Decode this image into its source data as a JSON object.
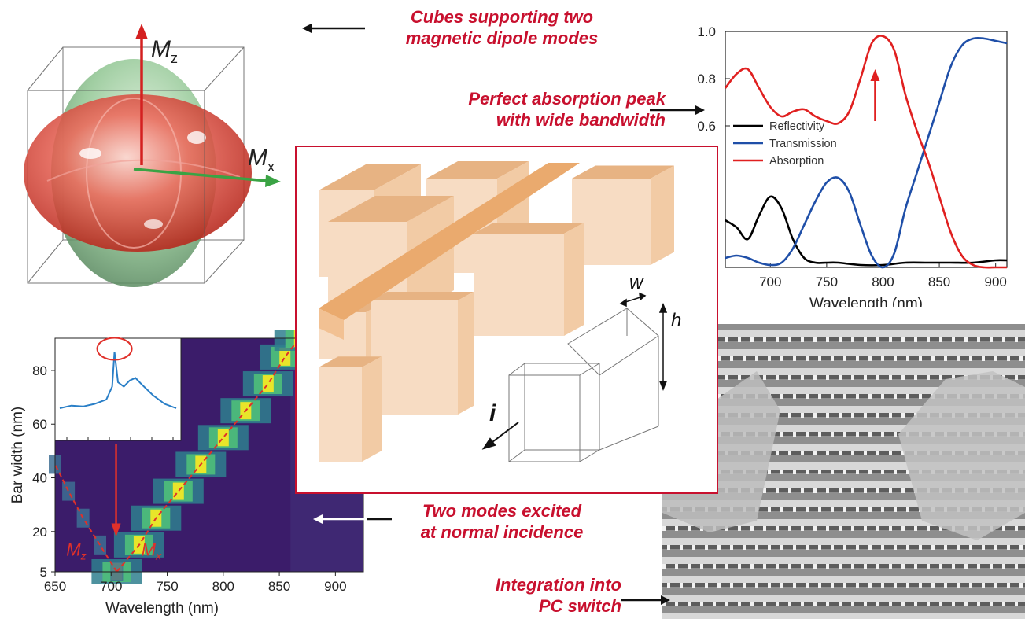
{
  "callouts": {
    "cubes_line1": "Cubes supporting two",
    "cubes_line2": "magnetic dipole modes",
    "absorption_line1": "Perfect absorption peak",
    "absorption_line2": "with wide bandwidth",
    "modes_line1": "Two modes excited",
    "modes_line2": "at normal incidence",
    "integration_line1": "Integration into",
    "integration_line2": "PC switch"
  },
  "dipole_panel": {
    "mz_label": "M",
    "mz_sub": "z",
    "mx_label": "M",
    "mx_sub": "x"
  },
  "structure_panel": {
    "w_label": "w",
    "h_label": "h",
    "i_label": "i"
  },
  "colors": {
    "callout_red": "#c8102e",
    "reflectivity": "#000000",
    "transmission": "#1f4fa8",
    "absorption": "#e02020",
    "cube_face": "#f7dcc3",
    "cube_top": "#e7b383"
  },
  "chart_data": [
    {
      "type": "line",
      "xlabel": "Wavelength (nm)",
      "ylabel": "",
      "xlim": [
        660,
        910
      ],
      "ylim": [
        0.0,
        1.0
      ],
      "xticks": [
        "700",
        "750",
        "800",
        "850",
        "900"
      ],
      "yticks": [
        "0.6",
        "0.8",
        "1.0"
      ],
      "legend_position": "center-left",
      "series": [
        {
          "name": "Reflectivity",
          "x": [
            660,
            670,
            680,
            690,
            700,
            710,
            720,
            730,
            740,
            750,
            760,
            780,
            800,
            820,
            840,
            860,
            880,
            900,
            910
          ],
          "y": [
            0.2,
            0.17,
            0.12,
            0.22,
            0.3,
            0.25,
            0.12,
            0.04,
            0.02,
            0.02,
            0.02,
            0.01,
            0.01,
            0.02,
            0.02,
            0.02,
            0.02,
            0.03,
            0.03
          ]
        },
        {
          "name": "Transmission",
          "x": [
            660,
            670,
            680,
            690,
            700,
            710,
            720,
            730,
            740,
            750,
            760,
            770,
            780,
            790,
            800,
            810,
            820,
            830,
            840,
            850,
            860,
            870,
            880,
            890,
            900,
            910
          ],
          "y": [
            0.04,
            0.05,
            0.04,
            0.02,
            0.01,
            0.02,
            0.08,
            0.18,
            0.28,
            0.36,
            0.38,
            0.32,
            0.18,
            0.05,
            0.0,
            0.06,
            0.25,
            0.4,
            0.55,
            0.7,
            0.85,
            0.94,
            0.97,
            0.97,
            0.96,
            0.95
          ]
        },
        {
          "name": "Absorption",
          "x": [
            660,
            670,
            680,
            690,
            700,
            710,
            720,
            730,
            740,
            750,
            760,
            770,
            780,
            790,
            800,
            810,
            820,
            830,
            840,
            850,
            860,
            870,
            880,
            890,
            900,
            910
          ],
          "y": [
            0.76,
            0.82,
            0.84,
            0.76,
            0.68,
            0.64,
            0.66,
            0.67,
            0.64,
            0.62,
            0.61,
            0.66,
            0.8,
            0.95,
            0.98,
            0.92,
            0.73,
            0.58,
            0.45,
            0.3,
            0.15,
            0.05,
            0.01,
            0.0,
            0.0,
            0.0
          ]
        }
      ],
      "annotations": [
        "upward red arrow at peak near 800 nm"
      ]
    },
    {
      "type": "heatmap",
      "xlabel": "Wavelength (nm)",
      "ylabel": "Bar width (nm)",
      "xlim": [
        650,
        925
      ],
      "ylim": [
        5,
        92
      ],
      "xticks": [
        "650",
        "700",
        "750",
        "800",
        "850",
        "900"
      ],
      "yticks": [
        "5",
        "20",
        "40",
        "60",
        "80"
      ],
      "mode_labels": {
        "mz": "M",
        "mz_sub": "z",
        "mx": "M",
        "mx_sub": "x"
      },
      "mode_x_branch": {
        "x": [
          705,
          725,
          740,
          760,
          780,
          800,
          820,
          840,
          855,
          868
        ],
        "y": [
          5,
          15,
          25,
          35,
          45,
          55,
          65,
          75,
          85,
          92
        ]
      },
      "mode_z_branch": {
        "x": [
          705,
          690,
          675,
          662,
          650
        ],
        "y": [
          5,
          15,
          25,
          35,
          45
        ]
      },
      "inset": {
        "type": "line",
        "x": [
          0,
          10,
          20,
          30,
          40,
          45,
          47,
          50,
          55,
          60,
          65,
          70,
          80,
          90,
          100
        ],
        "y": [
          0.3,
          0.33,
          0.32,
          0.35,
          0.4,
          0.55,
          0.95,
          0.6,
          0.55,
          0.62,
          0.65,
          0.58,
          0.45,
          0.35,
          0.3
        ]
      }
    }
  ]
}
